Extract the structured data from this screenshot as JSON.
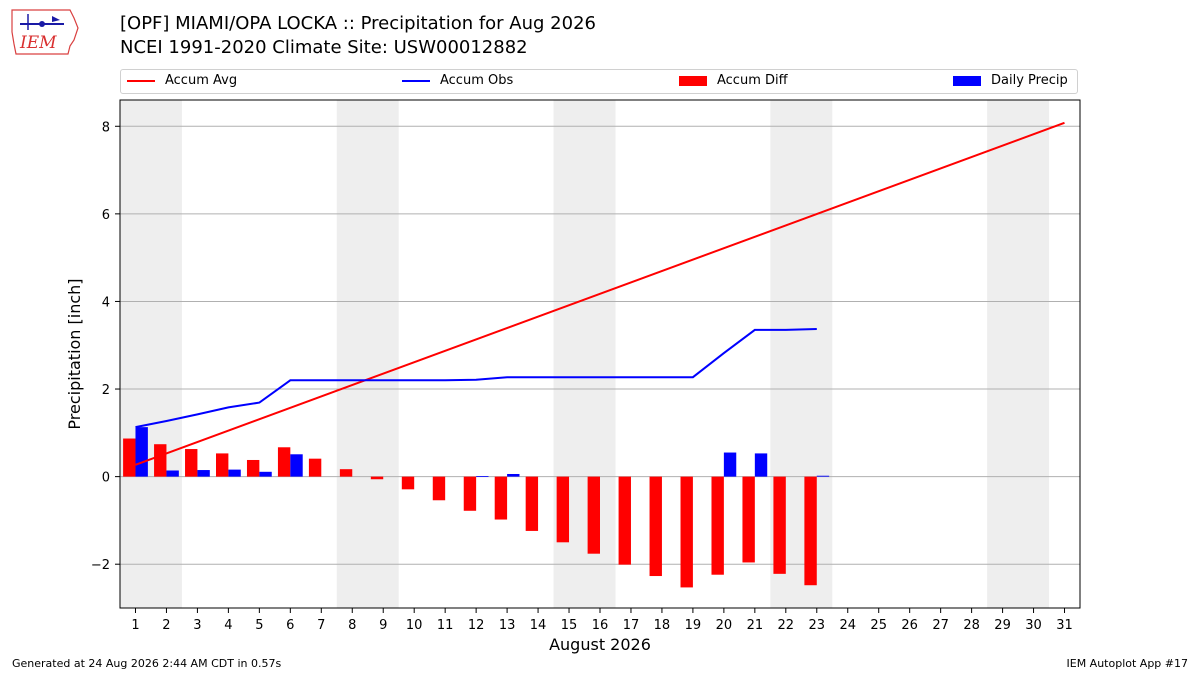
{
  "header": {
    "title_line1": "[OPF] MIAMI/OPA LOCKA :: Precipitation for Aug 2026",
    "title_line2": "NCEI 1991-2020 Climate Site: USW00012882",
    "logo_text": "IEM"
  },
  "footer": {
    "generated": "Generated at 24 Aug 2026 2:44 AM CDT in 0.57s",
    "app": "IEM Autoplot App #17"
  },
  "legend": {
    "placement": "top",
    "items": [
      {
        "label": "Accum Avg",
        "kind": "line",
        "color": "#ff0000"
      },
      {
        "label": "Accum Obs",
        "kind": "line",
        "color": "#0000ff"
      },
      {
        "label": "Accum Diff",
        "kind": "patch",
        "color": "#ff0000"
      },
      {
        "label": "Daily Precip",
        "kind": "patch",
        "color": "#0000ff"
      }
    ]
  },
  "chart_data": {
    "type": "bar",
    "xlabel": "August 2026",
    "ylabel": "Precipitation [inch]",
    "xlim": [
      0.5,
      31.5
    ],
    "ylim": [
      -3.0,
      8.6
    ],
    "yticks": [
      -2,
      0,
      2,
      4,
      6,
      8
    ],
    "grid": "horizontal",
    "days": [
      1,
      2,
      3,
      4,
      5,
      6,
      7,
      8,
      9,
      10,
      11,
      12,
      13,
      14,
      15,
      16,
      17,
      18,
      19,
      20,
      21,
      22,
      23,
      24,
      25,
      26,
      27,
      28,
      29,
      30,
      31
    ],
    "weekend_shading": [
      [
        1,
        2
      ],
      [
        8,
        9
      ],
      [
        15,
        16
      ],
      [
        22,
        23
      ],
      [
        29,
        30
      ]
    ],
    "colors": {
      "avg": "#ff0000",
      "obs": "#0000ff",
      "diff": "#ff0000",
      "daily": "#0000ff",
      "weekend": "#eeeeee",
      "grid": "#b0b0b0"
    },
    "series": [
      {
        "name": "Accum Avg",
        "kind": "line",
        "x": [
          1,
          31
        ],
        "values": [
          0.27,
          8.08
        ]
      },
      {
        "name": "Accum Obs",
        "kind": "line",
        "x": [
          1,
          2,
          3,
          4,
          5,
          6,
          7,
          8,
          9,
          10,
          11,
          12,
          13,
          14,
          15,
          16,
          17,
          18,
          19,
          20,
          21,
          22,
          23
        ],
        "values": [
          1.13,
          1.27,
          1.42,
          1.58,
          1.69,
          2.2,
          2.2,
          2.2,
          2.2,
          2.2,
          2.2,
          2.21,
          2.27,
          2.27,
          2.27,
          2.27,
          2.27,
          2.27,
          2.27,
          2.82,
          3.35,
          3.35,
          3.37
        ]
      },
      {
        "name": "Accum Diff",
        "kind": "bar",
        "x": [
          1,
          2,
          3,
          4,
          5,
          6,
          7,
          8,
          9,
          10,
          11,
          12,
          13,
          14,
          15,
          16,
          17,
          18,
          19,
          20,
          21,
          22,
          23
        ],
        "values": [
          0.87,
          0.74,
          0.63,
          0.53,
          0.38,
          0.67,
          0.41,
          0.17,
          -0.06,
          -0.29,
          -0.54,
          -0.78,
          -0.98,
          -1.24,
          -1.5,
          -1.76,
          -2.01,
          -2.27,
          -2.53,
          -2.24,
          -1.96,
          -2.22,
          -2.48
        ]
      },
      {
        "name": "Daily Precip",
        "kind": "bar",
        "x": [
          1,
          2,
          3,
          4,
          5,
          6,
          7,
          8,
          9,
          10,
          11,
          12,
          13,
          14,
          15,
          16,
          17,
          18,
          19,
          20,
          21,
          22,
          23
        ],
        "values": [
          1.13,
          0.14,
          0.15,
          0.16,
          0.11,
          0.51,
          0,
          0,
          0,
          0,
          0,
          0.01,
          0.06,
          0,
          0,
          0,
          0,
          0,
          0,
          0.55,
          0.53,
          0,
          0.02
        ]
      }
    ]
  }
}
